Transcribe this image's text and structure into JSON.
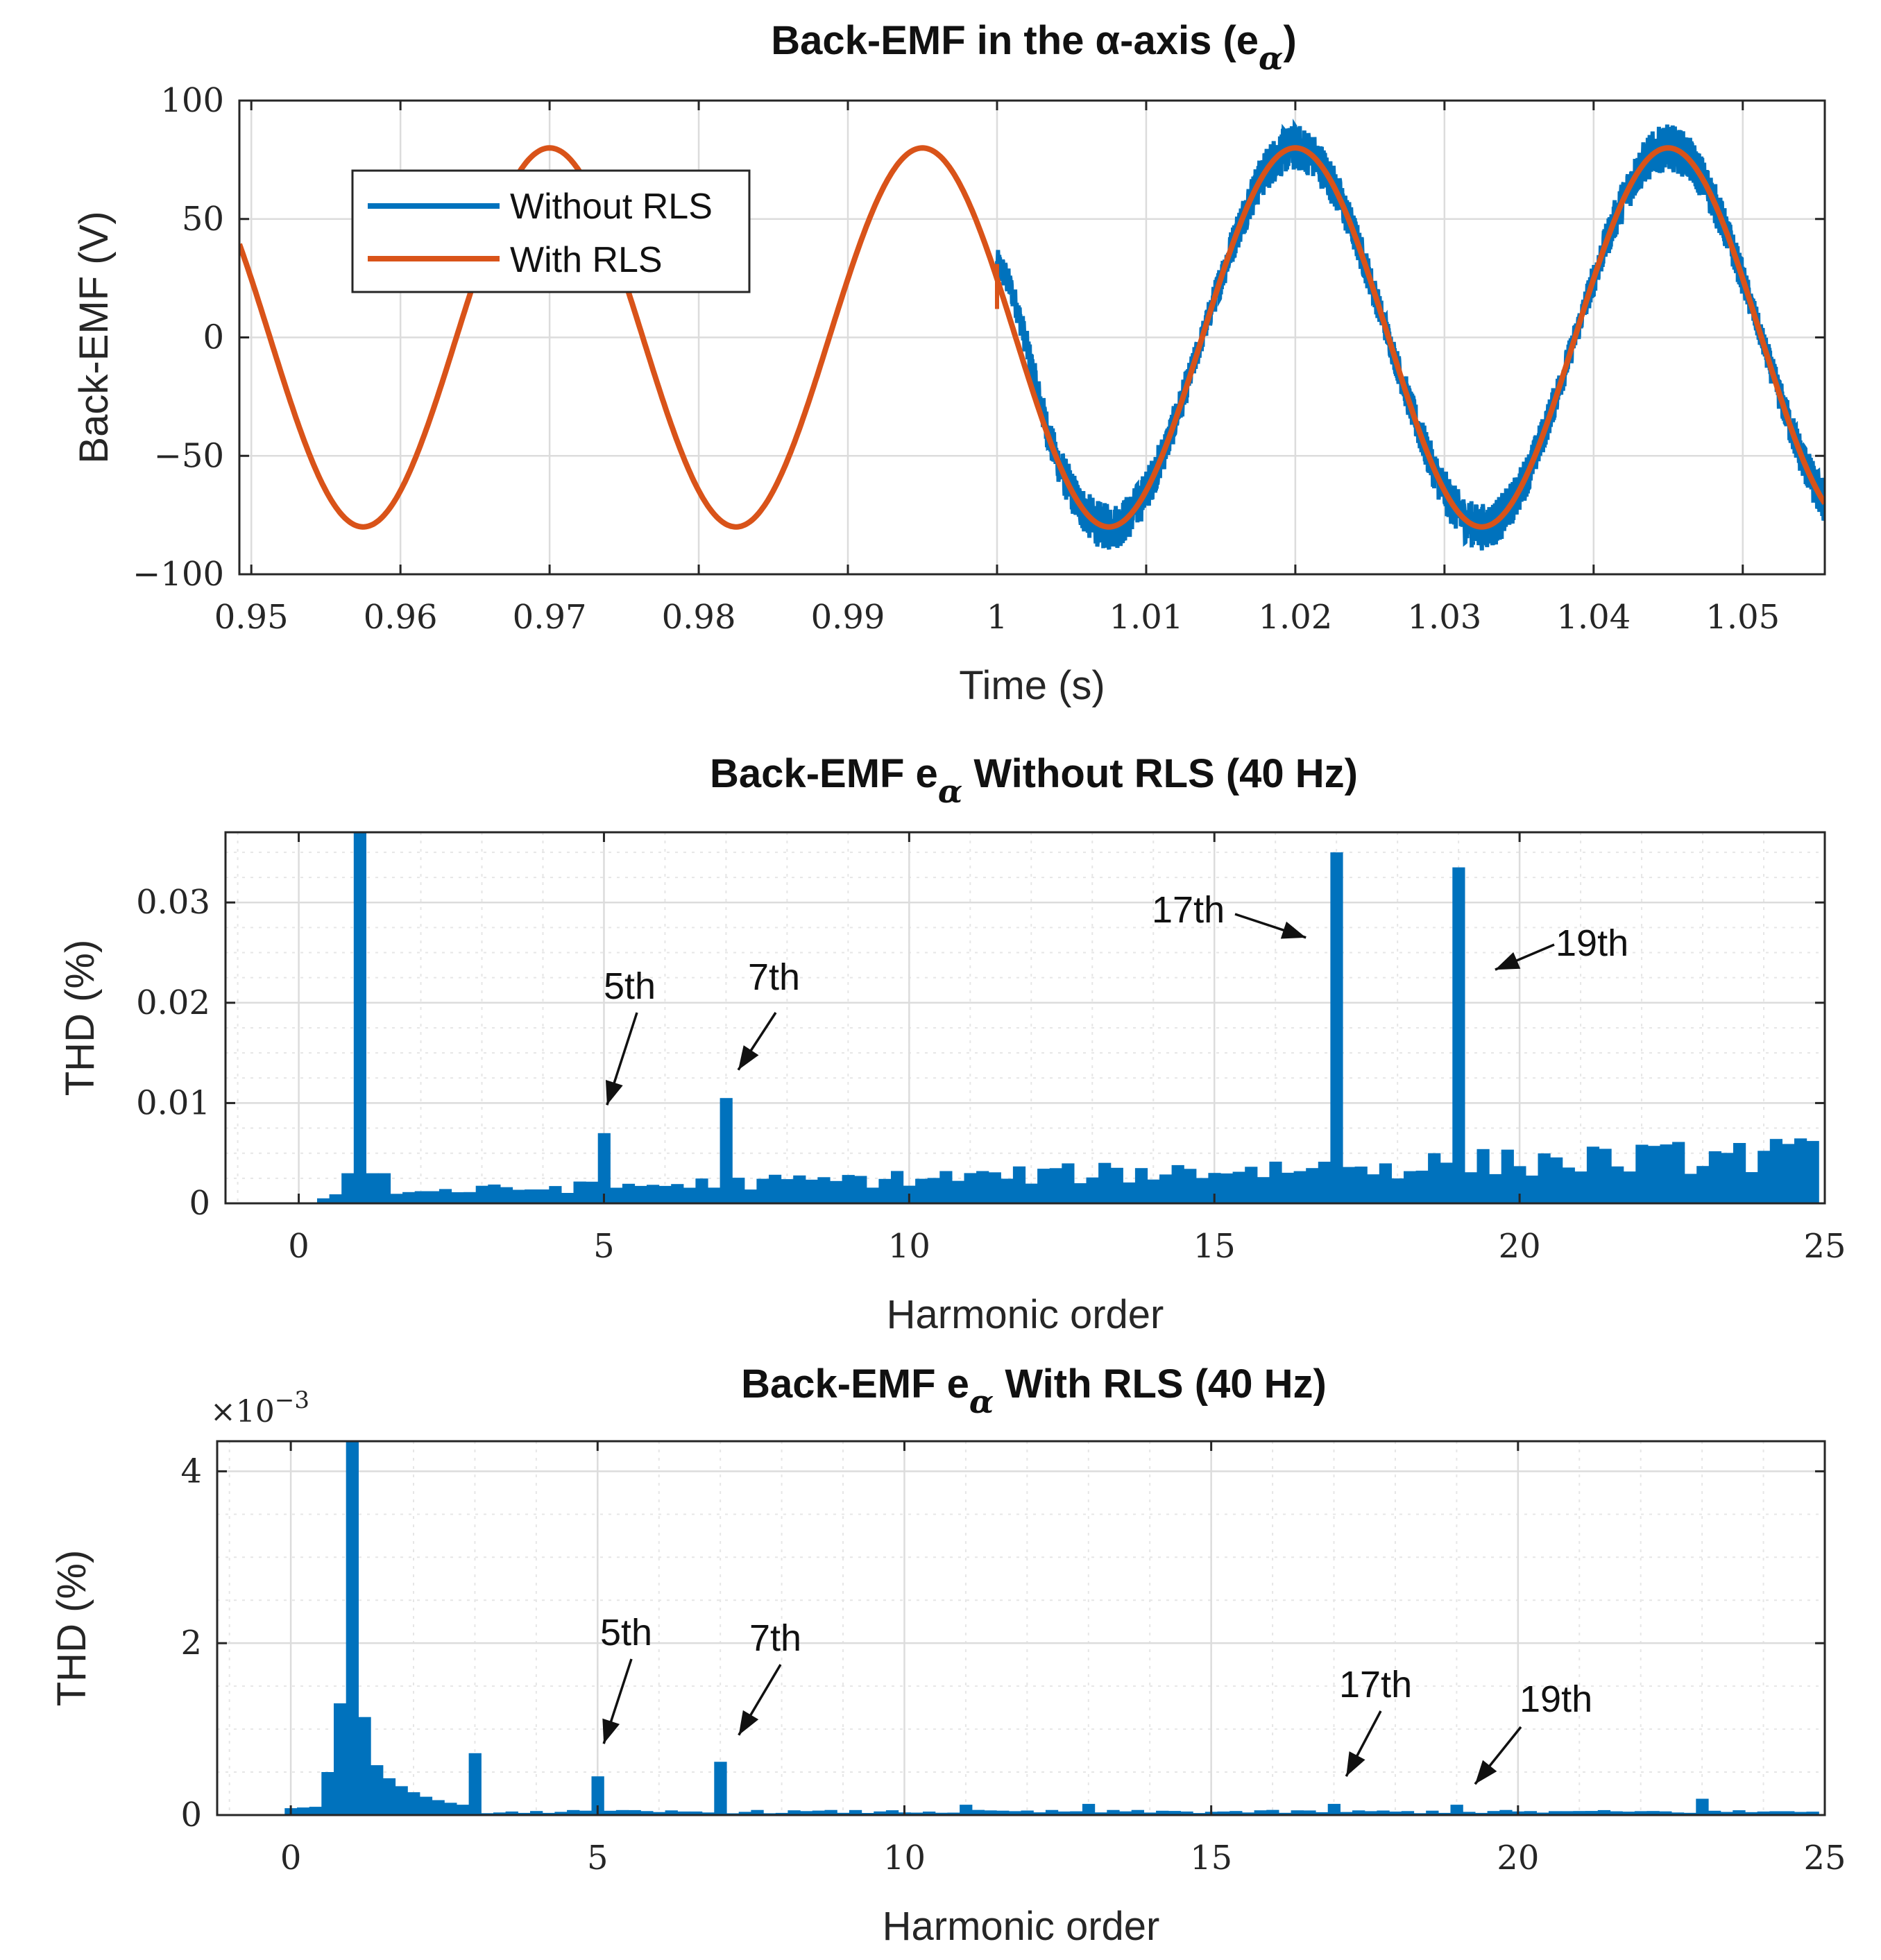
{
  "colors": {
    "without_rls": "#0072BD",
    "with_rls": "#D95319",
    "axis": "#262626",
    "grid": "#dcdcdc",
    "grid_minor": "#e6e6e6"
  },
  "chart_data": [
    {
      "type": "line",
      "title": "Back-EMF in the α-axis (e",
      "title_subscript": "α",
      "title_suffix": ")",
      "xlabel": "Time (s)",
      "ylabel": "Back-EMF (V)",
      "xlim": [
        0.9492,
        1.0555
      ],
      "ylim": [
        -100,
        100
      ],
      "xticks": [
        0.95,
        0.96,
        0.97,
        0.98,
        0.99,
        1.0,
        1.01,
        1.02,
        1.03,
        1.04,
        1.05
      ],
      "xtick_labels": [
        "0.95",
        "0.96",
        "0.97",
        "0.98",
        "0.99",
        "1",
        "1.01",
        "1.02",
        "1.03",
        "1.04",
        "1.05"
      ],
      "yticks": [
        -100,
        -50,
        0,
        50,
        100
      ],
      "ytick_labels": [
        "−100",
        "−50",
        "0",
        "50",
        "100"
      ],
      "grid": true,
      "legend_position": "upper-left",
      "series": [
        {
          "name": "Without RLS",
          "amplitude": 80,
          "frequency_hz": 40,
          "peak_time_s": 1.02,
          "t_start": 1.0,
          "t_end": 1.0555,
          "ripple_amplitude": 10,
          "start_value": 30
        },
        {
          "name": "With RLS",
          "amplitude": 80,
          "frequency_hz": 40,
          "peak_time_s": 0.97,
          "t_start": 0.9492,
          "t_end": 1.0555
        }
      ]
    },
    {
      "type": "bar",
      "title": "Back-EMF e",
      "title_subscript": "α",
      "title_suffix": " Without RLS (40 Hz)",
      "xlabel": "Harmonic order",
      "ylabel": "THD (%)",
      "xlim": [
        -1.2,
        25
      ],
      "ylim": [
        0,
        0.037
      ],
      "xticks": [
        0,
        5,
        10,
        15,
        20,
        25
      ],
      "xtick_labels": [
        "0",
        "5",
        "10",
        "15",
        "20",
        "25"
      ],
      "yticks": [
        0,
        0.01,
        0.02,
        0.03
      ],
      "ytick_labels": [
        "0",
        "0.01",
        "0.02",
        "0.03"
      ],
      "grid": true,
      "bar_width": 0.2,
      "peaks": [
        {
          "harmonic": 1,
          "value": 0.037
        },
        {
          "harmonic": 5,
          "value": 0.007
        },
        {
          "harmonic": 7,
          "value": 0.0105
        },
        {
          "harmonic": 17,
          "value": 0.035
        },
        {
          "harmonic": 19,
          "value": 0.0335
        }
      ],
      "noise_floor": {
        "start": 0.0008,
        "end": 0.0045
      },
      "annotations": [
        {
          "text": "5th",
          "target": [
            5.05,
            0.0098
          ]
        },
        {
          "text": "7th",
          "target": [
            7.2,
            0.0133
          ]
        },
        {
          "text": "17th",
          "target": [
            16.5,
            0.0265
          ]
        },
        {
          "text": "19th",
          "target": [
            19.6,
            0.0233
          ]
        }
      ]
    },
    {
      "type": "bar",
      "title": "Back-EMF e",
      "title_subscript": "α",
      "title_suffix": " With RLS (40 Hz)",
      "xlabel": "Harmonic order",
      "ylabel": "THD (%)",
      "xlim": [
        -1.2,
        25
      ],
      "ylim": [
        0,
        0.00435
      ],
      "y_scale_label": "×10",
      "y_scale_exponent": "−3",
      "xticks": [
        0,
        5,
        10,
        15,
        20,
        25
      ],
      "xtick_labels": [
        "0",
        "5",
        "10",
        "15",
        "20",
        "25"
      ],
      "yticks": [
        0,
        0.002,
        0.004
      ],
      "ytick_labels": [
        "0",
        "2",
        "4"
      ],
      "grid": true,
      "bar_width": 0.2,
      "peaks": [
        {
          "harmonic": 1,
          "value": 0.00435
        },
        {
          "harmonic": 3,
          "value": 0.00072
        },
        {
          "harmonic": 5,
          "value": 0.00045
        },
        {
          "harmonic": 7,
          "value": 0.00062
        },
        {
          "harmonic": 11,
          "value": 0.00012
        },
        {
          "harmonic": 13,
          "value": 0.00013
        },
        {
          "harmonic": 17,
          "value": 0.00013
        },
        {
          "harmonic": 19,
          "value": 0.00012
        },
        {
          "harmonic": 23,
          "value": 0.00019
        }
      ],
      "annotations": [
        {
          "text": "5th",
          "target": [
            5.1,
            0.00083
          ]
        },
        {
          "text": "7th",
          "target": [
            7.3,
            0.00093
          ]
        },
        {
          "text": "17th",
          "target": [
            17.2,
            0.00045
          ]
        },
        {
          "text": "19th",
          "target": [
            19.3,
            0.00036
          ]
        }
      ]
    }
  ]
}
